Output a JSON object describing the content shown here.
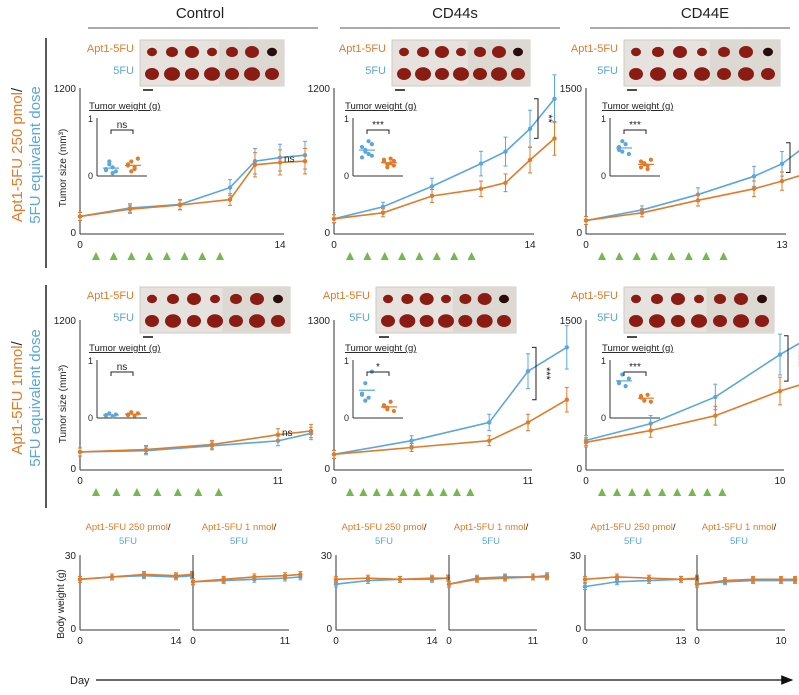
{
  "colors": {
    "apt": "#e07b2a",
    "fu": "#5ba7dc",
    "tri": "#74b84e",
    "axis": "#333333"
  },
  "columns": [
    "Control",
    "CD44s",
    "CD44E"
  ],
  "row_labels": {
    "r1a": "Apt1-5FU 250 pmol",
    "r1b": "5FU equivalent dose",
    "r2a": "Apt1-5FU 1nmol",
    "r2b": "5FU equivalent dose",
    "slash": "/"
  },
  "common": {
    "ylabel_tumor": "Tumor size (mm³)",
    "ylabel_body": "Body weight (g)",
    "tumor_weight": "Tumor weight (g)",
    "photo_apt": "Apt1-5FU",
    "photo_fu": "5FU",
    "day": "Day"
  },
  "chart_data": [
    {
      "type": "line",
      "id": "r1c1",
      "ylim": [
        0,
        1200
      ],
      "yticks": [
        "0",
        "1200"
      ],
      "xticks": [
        "0",
        "14"
      ],
      "xmax": 14,
      "series": [
        {
          "name": "Apt1-5FU",
          "values": [
            [
              0,
              130
            ],
            [
              2,
              190
            ],
            [
              4,
              225
            ],
            [
              6,
              270
            ],
            [
              7,
              560
            ],
            [
              8,
              580
            ],
            [
              9,
              590
            ]
          ]
        },
        {
          "name": "5FU",
          "values": [
            [
              0,
              130
            ],
            [
              2,
              200
            ],
            [
              4,
              230
            ],
            [
              6,
              370
            ],
            [
              7,
              590
            ],
            [
              8,
              620
            ],
            [
              9,
              640
            ]
          ]
        }
      ],
      "sig": "ns",
      "triangles": 8,
      "inset": {
        "ymax": "1",
        "yticks": [
          "0",
          "1"
        ],
        "sig": "ns",
        "fu": [
          0.1,
          0.2,
          0.15,
          0.08,
          0.12,
          0.25,
          0.05
        ],
        "apt": [
          0.18,
          0.25,
          0.12,
          0.3,
          0.2,
          0.08,
          0.15
        ]
      }
    },
    {
      "type": "line",
      "id": "r1c2",
      "ylim": [
        0,
        1200
      ],
      "yticks": [
        "0",
        "1200"
      ],
      "xticks": [
        "0",
        "14"
      ],
      "xmax": 14,
      "series": [
        {
          "name": "Apt1-5FU",
          "values": [
            [
              0,
              110
            ],
            [
              2,
              160
            ],
            [
              4,
              300
            ],
            [
              6,
              360
            ],
            [
              7,
              410
            ],
            [
              8,
              600
            ],
            [
              9,
              780
            ]
          ]
        },
        {
          "name": "5FU",
          "values": [
            [
              0,
              110
            ],
            [
              2,
              210
            ],
            [
              4,
              380
            ],
            [
              6,
              570
            ],
            [
              7,
              670
            ],
            [
              8,
              860
            ],
            [
              9,
              1110
            ]
          ]
        }
      ],
      "sig": "**",
      "triangles": 8,
      "inset": {
        "ymax": "1",
        "yticks": [
          "0",
          "1"
        ],
        "sig": "***",
        "fu": [
          0.5,
          0.42,
          0.38,
          0.55,
          0.32,
          0.45,
          0.6,
          0.35
        ],
        "apt": [
          0.25,
          0.2,
          0.3,
          0.18,
          0.28,
          0.15,
          0.22,
          0.26
        ]
      }
    },
    {
      "type": "line",
      "id": "r1c3",
      "ylim": [
        0,
        1500
      ],
      "yticks": [
        "0",
        "1500"
      ],
      "xticks": [
        "0",
        "13"
      ],
      "xmax": 13,
      "series": [
        {
          "name": "Apt1-5FU",
          "values": [
            [
              0,
              120
            ],
            [
              2,
              200
            ],
            [
              4,
              330
            ],
            [
              6,
              450
            ],
            [
              7,
              530
            ],
            [
              8,
              620
            ]
          ]
        },
        {
          "name": "5FU",
          "values": [
            [
              0,
              120
            ],
            [
              2,
              230
            ],
            [
              4,
              390
            ],
            [
              6,
              580
            ],
            [
              7,
              710
            ],
            [
              8,
              930
            ]
          ]
        }
      ],
      "sig": "**",
      "triangles": 8,
      "inset": {
        "ymax": "1",
        "yticks": [
          "0",
          "1"
        ],
        "sig": "***",
        "fu": [
          0.5,
          0.42,
          0.55,
          0.38,
          0.45,
          0.6
        ],
        "apt": [
          0.25,
          0.2,
          0.18,
          0.28,
          0.15,
          0.22,
          0.12
        ]
      }
    },
    {
      "type": "line",
      "id": "r2c1",
      "ylim": [
        0,
        1200
      ],
      "yticks": [
        "0",
        "1200"
      ],
      "xticks": [
        "0",
        "11"
      ],
      "xmax": 11,
      "series": [
        {
          "name": "Apt1-5FU",
          "values": [
            [
              0,
              130
            ],
            [
              2,
              150
            ],
            [
              4,
              190
            ],
            [
              6,
              270
            ],
            [
              7,
              300
            ]
          ]
        },
        {
          "name": "5FU",
          "values": [
            [
              0,
              130
            ],
            [
              2,
              140
            ],
            [
              4,
              180
            ],
            [
              6,
              220
            ],
            [
              7,
              280
            ]
          ]
        }
      ],
      "sig": "ns",
      "triangles": 7,
      "inset": {
        "ymax": "1",
        "yticks": [
          "0",
          "1"
        ],
        "sig": "ns",
        "fu": [
          0.05,
          0.08,
          0.03,
          0.06,
          0.04
        ],
        "apt": [
          0.06,
          0.1,
          0.04,
          0.08,
          0.05
        ]
      }
    },
    {
      "type": "line",
      "id": "r2c2",
      "ylim": [
        0,
        1300
      ],
      "yticks": [
        "0",
        "1300"
      ],
      "xticks": [
        "0",
        "11"
      ],
      "xmax": 11,
      "series": [
        {
          "name": "Apt1-5FU",
          "values": [
            [
              0,
              120
            ],
            [
              2,
              180
            ],
            [
              4,
              240
            ],
            [
              5,
              400
            ],
            [
              6,
              600
            ]
          ]
        },
        {
          "name": "5FU",
          "values": [
            [
              0,
              120
            ],
            [
              2,
              240
            ],
            [
              4,
              400
            ],
            [
              5,
              850
            ],
            [
              6,
              1060
            ]
          ]
        }
      ],
      "sig": "***",
      "triangles": 10,
      "inset": {
        "ymax": "1",
        "yticks": [
          "0",
          "1"
        ],
        "sig": "*",
        "fu": [
          0.4,
          0.6,
          0.35,
          0.8,
          0.42,
          0.3
        ],
        "apt": [
          0.2,
          0.15,
          0.28,
          0.12,
          0.22,
          0.18
        ]
      }
    },
    {
      "type": "line",
      "id": "r2c3",
      "ylim": [
        0,
        1500
      ],
      "yticks": [
        "0",
        "1500"
      ],
      "xticks": [
        "0",
        "10"
      ],
      "xmax": 10,
      "series": [
        {
          "name": "Apt1-5FU",
          "values": [
            [
              0,
              260
            ],
            [
              2,
              380
            ],
            [
              4,
              530
            ],
            [
              6,
              780
            ],
            [
              7,
              880
            ]
          ]
        },
        {
          "name": "5FU",
          "values": [
            [
              0,
              280
            ],
            [
              2,
              450
            ],
            [
              4,
              720
            ],
            [
              6,
              1150
            ],
            [
              7,
              1340
            ]
          ]
        }
      ],
      "sig": "****",
      "triangles": 9,
      "inset": {
        "ymax": "1",
        "yticks": [
          "0",
          "1"
        ],
        "sig": "***",
        "fu": [
          0.6,
          0.75,
          0.55,
          0.68,
          0.62
        ],
        "apt": [
          0.35,
          0.3,
          0.4,
          0.28,
          0.38
        ]
      }
    },
    {
      "type": "line",
      "id": "b1",
      "title_a": "Apt1-5FU 250 pmol",
      "title_b": "5FU",
      "ylim": [
        0,
        30
      ],
      "yticks": [
        "0",
        "30"
      ],
      "xticks": [
        "0",
        "14"
      ],
      "xmax": 14,
      "series": [
        {
          "name": "Apt1-5FU",
          "values": [
            [
              0,
              20
            ],
            [
              2,
              21
            ],
            [
              4,
              22
            ],
            [
              6,
              21.5
            ],
            [
              7,
              22
            ]
          ]
        },
        {
          "name": "5FU",
          "values": [
            [
              0,
              20
            ],
            [
              2,
              21
            ],
            [
              4,
              21.5
            ],
            [
              6,
              21
            ],
            [
              7,
              21.5
            ]
          ]
        }
      ]
    },
    {
      "type": "line",
      "id": "b2",
      "title_a": "Apt1-5FU 1 nmol",
      "title_b": "5FU",
      "ylim": [
        0,
        30
      ],
      "yticks": [],
      "xticks": [
        "0",
        "11"
      ],
      "xmax": 11,
      "series": [
        {
          "name": "Apt1-5FU",
          "values": [
            [
              0,
              19
            ],
            [
              2,
              20
            ],
            [
              4,
              21
            ],
            [
              6,
              21.5
            ],
            [
              7,
              22
            ]
          ]
        },
        {
          "name": "5FU",
          "values": [
            [
              0,
              19
            ],
            [
              2,
              19.5
            ],
            [
              4,
              20
            ],
            [
              6,
              20.5
            ],
            [
              7,
              21
            ]
          ]
        }
      ]
    },
    {
      "type": "line",
      "id": "b3",
      "title_a": "Apt1-5FU 250 pmol",
      "title_b": "5FU",
      "ylim": [
        0,
        30
      ],
      "yticks": [
        "0",
        "30"
      ],
      "xticks": [
        "0",
        "14"
      ],
      "xmax": 14,
      "series": [
        {
          "name": "Apt1-5FU",
          "values": [
            [
              0,
              20
            ],
            [
              2,
              20.5
            ],
            [
              4,
              20
            ],
            [
              6,
              20.5
            ],
            [
              7,
              20.5
            ]
          ]
        },
        {
          "name": "5FU",
          "values": [
            [
              0,
              18
            ],
            [
              2,
              19.5
            ],
            [
              4,
              20
            ],
            [
              6,
              20
            ],
            [
              7,
              20.5
            ]
          ]
        }
      ]
    },
    {
      "type": "line",
      "id": "b4",
      "title_a": "Apt1-5FU 1 nmol",
      "title_b": "5FU",
      "ylim": [
        0,
        30
      ],
      "yticks": [],
      "xticks": [
        "0",
        "11"
      ],
      "xmax": 11,
      "series": [
        {
          "name": "Apt1-5FU",
          "values": [
            [
              0,
              18
            ],
            [
              2,
              20
            ],
            [
              4,
              20.5
            ],
            [
              6,
              21
            ],
            [
              7,
              21
            ]
          ]
        },
        {
          "name": "5FU",
          "values": [
            [
              0,
              18
            ],
            [
              2,
              20.5
            ],
            [
              4,
              21
            ],
            [
              6,
              21
            ],
            [
              7,
              21.5
            ]
          ]
        }
      ]
    },
    {
      "type": "line",
      "id": "b5",
      "title_a": "Apt1-5FU 250 pmol",
      "title_b": "5FU",
      "ylim": [
        0,
        30
      ],
      "yticks": [
        "0",
        "30"
      ],
      "xticks": [
        "0",
        "13"
      ],
      "xmax": 13,
      "series": [
        {
          "name": "Apt1-5FU",
          "values": [
            [
              0,
              20
            ],
            [
              2,
              21
            ],
            [
              4,
              20.5
            ],
            [
              6,
              20
            ],
            [
              7,
              20.5
            ]
          ]
        },
        {
          "name": "5FU",
          "values": [
            [
              0,
              17
            ],
            [
              2,
              19
            ],
            [
              4,
              19.5
            ],
            [
              6,
              20
            ],
            [
              7,
              20
            ]
          ]
        }
      ]
    },
    {
      "type": "line",
      "id": "b6",
      "title_a": "Apt1-5FU 1 nmol",
      "title_b": "5FU",
      "ylim": [
        0,
        30
      ],
      "yticks": [],
      "xticks": [
        "0",
        "10"
      ],
      "xmax": 10,
      "series": [
        {
          "name": "Apt1-5FU",
          "values": [
            [
              0,
              18
            ],
            [
              2,
              19.5
            ],
            [
              4,
              20
            ],
            [
              6,
              20
            ],
            [
              7,
              20
            ]
          ]
        },
        {
          "name": "5FU",
          "values": [
            [
              0,
              18
            ],
            [
              2,
              19
            ],
            [
              4,
              19.5
            ],
            [
              6,
              19.5
            ],
            [
              7,
              19.5
            ]
          ]
        }
      ]
    }
  ]
}
